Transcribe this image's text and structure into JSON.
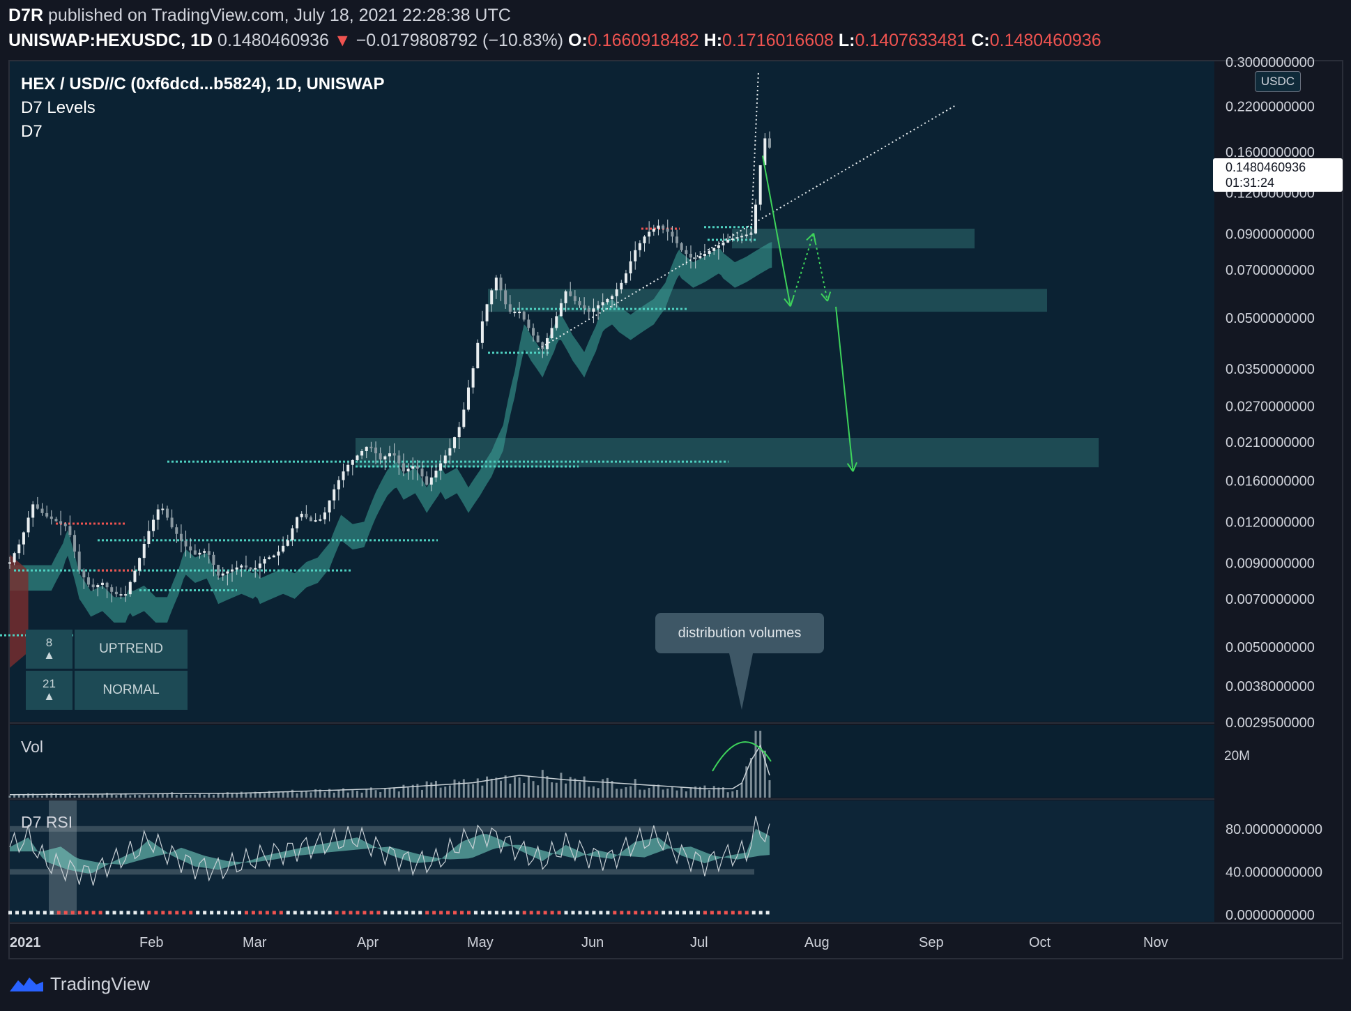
{
  "header": {
    "author": "D7R",
    "published": "published on TradingView.com, July 18, 2021 22:28:38 UTC",
    "symbol": "UNISWAP:HEXUSDC, 1D",
    "last": "0.1480460936",
    "change": "−0.0179808792 (−10.83%)",
    "o_label": "O:",
    "o": "0.1660918482",
    "h_label": "H:",
    "h": "0.1716016608",
    "l_label": "L:",
    "l": "0.1407633481",
    "c_label": "C:",
    "c": "0.1480460936"
  },
  "legend": {
    "title": "HEX / USD//C (0xf6dcd...b5824), 1D, UNISWAP",
    "ind1": "D7 Levels",
    "ind2": "D7"
  },
  "trend_table": [
    {
      "n": "8",
      "label": "UPTREND"
    },
    {
      "n": "21",
      "label": "NORMAL"
    }
  ],
  "annotation": "distribution volumes",
  "price_box": {
    "price": "0.1480460936",
    "countdown": "01:31:24"
  },
  "currency": "USDC",
  "vol_label": "Vol",
  "rsi_label": "D7 RSI",
  "footer_brand": "TradingView",
  "colors": {
    "bg": "#0b2233",
    "teal": "#4fd1c1",
    "red": "#ef5350",
    "green": "#3ed35b"
  },
  "chart_data": {
    "type": "candlestick",
    "scale": "log",
    "ylim": [
      0.00295,
      0.3
    ],
    "x_tick_labels": [
      "2021",
      "Feb",
      "Mar",
      "Apr",
      "May",
      "Jun",
      "Jul",
      "Aug",
      "Sep",
      "Oct",
      "Nov"
    ],
    "y_tick_labels": [
      "0.3000000000",
      "0.2200000000",
      "0.1600000000",
      "0.1200000000",
      "0.0900000000",
      "0.0700000000",
      "0.0500000000",
      "0.0350000000",
      "0.0270000000",
      "0.0210000000",
      "0.0160000000",
      "0.0120000000",
      "0.0090000000",
      "0.0070000000",
      "0.0050000000",
      "0.0038000000",
      "0.0029500000"
    ],
    "y_ticks": [
      0.3,
      0.22,
      0.16,
      0.12,
      0.09,
      0.07,
      0.05,
      0.035,
      0.027,
      0.021,
      0.016,
      0.012,
      0.009,
      0.007,
      0.005,
      0.0038,
      0.00295
    ],
    "price_path": [
      [
        0,
        0.009
      ],
      [
        5,
        0.0105
      ],
      [
        10,
        0.0135
      ],
      [
        15,
        0.0125
      ],
      [
        20,
        0.012
      ],
      [
        25,
        0.0115
      ],
      [
        30,
        0.0085
      ],
      [
        35,
        0.0075
      ],
      [
        40,
        0.0078
      ],
      [
        45,
        0.0072
      ],
      [
        50,
        0.0072
      ],
      [
        55,
        0.0088
      ],
      [
        60,
        0.0112
      ],
      [
        65,
        0.0135
      ],
      [
        70,
        0.0115
      ],
      [
        75,
        0.0102
      ],
      [
        80,
        0.0095
      ],
      [
        85,
        0.0098
      ],
      [
        90,
        0.0082
      ],
      [
        95,
        0.0085
      ],
      [
        100,
        0.0088
      ],
      [
        105,
        0.0085
      ],
      [
        110,
        0.0092
      ],
      [
        115,
        0.0095
      ],
      [
        120,
        0.0105
      ],
      [
        125,
        0.0128
      ],
      [
        130,
        0.012
      ],
      [
        135,
        0.0122
      ],
      [
        140,
        0.015
      ],
      [
        145,
        0.0175
      ],
      [
        150,
        0.019
      ],
      [
        155,
        0.0205
      ],
      [
        160,
        0.0185
      ],
      [
        165,
        0.0195
      ],
      [
        170,
        0.017
      ],
      [
        175,
        0.0178
      ],
      [
        180,
        0.0155
      ],
      [
        185,
        0.0175
      ],
      [
        190,
        0.02
      ],
      [
        195,
        0.024
      ],
      [
        200,
        0.035
      ],
      [
        205,
        0.052
      ],
      [
        210,
        0.066
      ],
      [
        215,
        0.052
      ],
      [
        220,
        0.052
      ],
      [
        225,
        0.045
      ],
      [
        230,
        0.04
      ],
      [
        235,
        0.048
      ],
      [
        240,
        0.06
      ],
      [
        245,
        0.055
      ],
      [
        250,
        0.052
      ],
      [
        255,
        0.055
      ],
      [
        260,
        0.058
      ],
      [
        265,
        0.065
      ],
      [
        270,
        0.08
      ],
      [
        275,
        0.09
      ],
      [
        280,
        0.095
      ],
      [
        285,
        0.09
      ],
      [
        290,
        0.08
      ],
      [
        295,
        0.075
      ],
      [
        300,
        0.078
      ],
      [
        305,
        0.082
      ],
      [
        310,
        0.086
      ],
      [
        315,
        0.088
      ],
      [
        320,
        0.09
      ],
      [
        323,
        0.12
      ],
      [
        325,
        0.17
      ],
      [
        327,
        0.18
      ],
      [
        329,
        0.148
      ]
    ],
    "volume_path": [
      [
        0,
        0.2
      ],
      [
        100,
        0.3
      ],
      [
        160,
        0.6
      ],
      [
        200,
        1.0
      ],
      [
        220,
        1.5
      ],
      [
        240,
        1.2
      ],
      [
        260,
        1.0
      ],
      [
        280,
        0.8
      ],
      [
        300,
        0.6
      ],
      [
        315,
        0.6
      ],
      [
        320,
        2.5
      ],
      [
        322,
        4.5
      ],
      [
        325,
        3.0
      ],
      [
        327,
        1.8
      ],
      [
        329,
        1.2
      ]
    ],
    "volume_tick_label": "20M",
    "rsi_tick_labels": [
      "80.0000000000",
      "40.0000000000",
      "0.0000000000"
    ],
    "rsi_ticks": [
      80,
      40,
      0
    ],
    "rsi_path": [
      [
        0,
        63
      ],
      [
        8,
        72
      ],
      [
        15,
        50
      ],
      [
        25,
        42
      ],
      [
        35,
        38
      ],
      [
        45,
        50
      ],
      [
        55,
        60
      ],
      [
        60,
        70
      ],
      [
        70,
        55
      ],
      [
        80,
        45
      ],
      [
        90,
        42
      ],
      [
        100,
        48
      ],
      [
        110,
        55
      ],
      [
        125,
        62
      ],
      [
        140,
        68
      ],
      [
        150,
        72
      ],
      [
        165,
        55
      ],
      [
        175,
        48
      ],
      [
        185,
        50
      ],
      [
        195,
        68
      ],
      [
        205,
        76
      ],
      [
        212,
        70
      ],
      [
        220,
        60
      ],
      [
        230,
        50
      ],
      [
        240,
        65
      ],
      [
        250,
        55
      ],
      [
        260,
        52
      ],
      [
        270,
        68
      ],
      [
        280,
        72
      ],
      [
        290,
        55
      ],
      [
        300,
        48
      ],
      [
        310,
        55
      ],
      [
        318,
        58
      ],
      [
        322,
        80
      ],
      [
        326,
        76
      ],
      [
        329,
        72
      ]
    ],
    "zones": [
      [
        0.081,
        0.093
      ],
      [
        0.052,
        0.061
      ],
      [
        0.0175,
        0.0215
      ]
    ],
    "forecast_path": [
      [
        325,
        0.155
      ],
      [
        337,
        0.054
      ],
      [
        347,
        0.09
      ],
      [
        353,
        0.056
      ],
      [
        364,
        0.017
      ]
    ],
    "day_axis_max": 520
  }
}
